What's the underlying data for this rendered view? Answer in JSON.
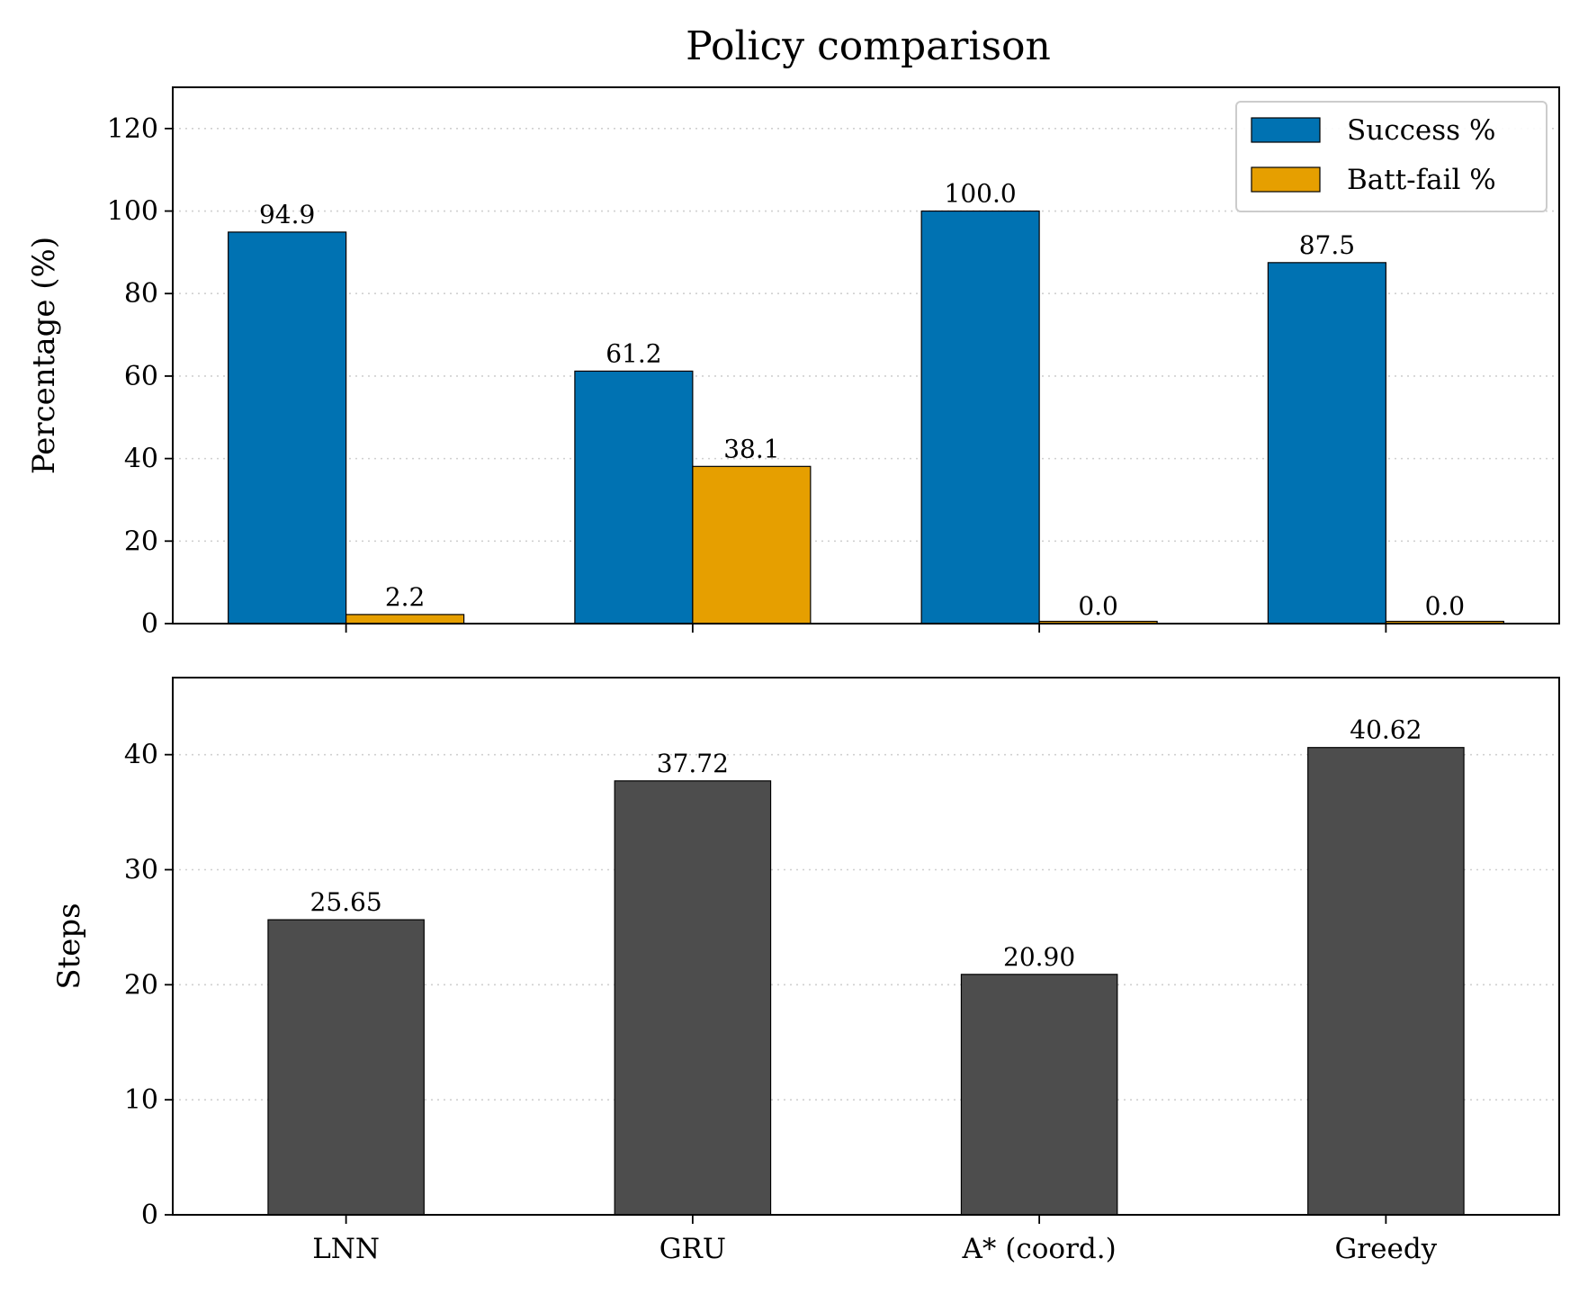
{
  "title": "Policy comparison",
  "chart_data": [
    {
      "type": "bar",
      "categories": [
        "LNN",
        "GRU",
        "A* (coord.)",
        "Greedy"
      ],
      "ylabel": "Percentage (%)",
      "xlabel": "",
      "ylim": [
        0,
        130
      ],
      "yticks": [
        0,
        20,
        40,
        60,
        80,
        100,
        120
      ],
      "grid": "horizontal dotted",
      "legend": "top-right",
      "series": [
        {
          "name": "Success %",
          "values": [
            94.9,
            61.2,
            100.0,
            87.5
          ],
          "labels": [
            "94.9",
            "61.2",
            "100.0",
            "87.5"
          ],
          "color": "#0072b2"
        },
        {
          "name": "Batt-fail %",
          "values": [
            2.2,
            38.1,
            0.0,
            0.0
          ],
          "labels": [
            "2.2",
            "38.1",
            "0.0",
            "0.0"
          ],
          "color": "#e69f00"
        }
      ]
    },
    {
      "type": "bar",
      "categories": [
        "LNN",
        "GRU",
        "A* (coord.)",
        "Greedy"
      ],
      "ylabel": "Steps",
      "xlabel": "",
      "ylim": [
        0,
        46.7
      ],
      "yticks": [
        0,
        10,
        20,
        30,
        40
      ],
      "grid": "horizontal dotted",
      "series": [
        {
          "values": [
            25.65,
            37.72,
            20.9,
            40.62
          ],
          "labels": [
            "25.65",
            "37.72",
            "20.90",
            "40.62"
          ],
          "color": "#4d4d4d"
        }
      ]
    }
  ]
}
